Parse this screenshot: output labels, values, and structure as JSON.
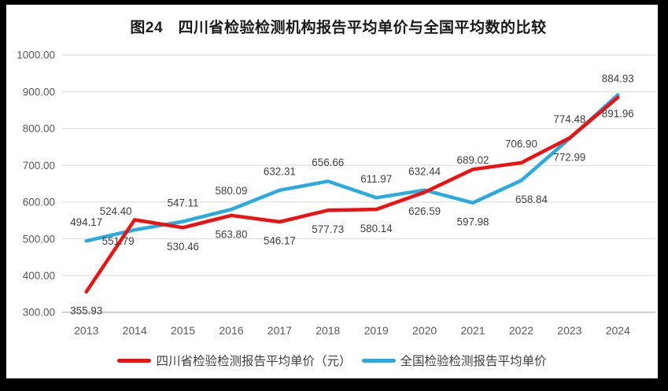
{
  "chart_data": {
    "type": "line",
    "title": "图24　四川省检验检测机构报告平均单价与全国平均数的比较",
    "categories": [
      "2013",
      "2014",
      "2015",
      "2016",
      "2017",
      "2018",
      "2019",
      "2020",
      "2021",
      "2022",
      "2023",
      "2024"
    ],
    "series": [
      {
        "name": "四川省检验检测报告平均单价（元）",
        "color": "#ee1111",
        "values": [
          355.93,
          551.79,
          530.46,
          563.8,
          546.17,
          577.73,
          580.14,
          626.59,
          689.02,
          706.9,
          774.48,
          884.93
        ],
        "label_positions": [
          "below",
          "below",
          "below",
          "below",
          "below",
          "below",
          "below",
          "below",
          "above",
          "above",
          "above",
          "above"
        ]
      },
      {
        "name": "全国检验检测报告平均单价",
        "color": "#29abe2",
        "values": [
          494.17,
          524.4,
          547.11,
          580.09,
          632.31,
          656.66,
          611.97,
          632.44,
          597.98,
          658.84,
          772.99,
          891.96
        ],
        "label_positions": [
          "above",
          "above",
          "above",
          "above",
          "above",
          "above",
          "above",
          "above",
          "below",
          "below",
          "below",
          "below"
        ]
      }
    ],
    "y_axis": {
      "min": 300,
      "max": 1000,
      "step": 100,
      "tick_labels": [
        "300.00",
        "400.00",
        "500.00",
        "600.00",
        "700.00",
        "800.00",
        "900.00",
        "1000.00"
      ]
    },
    "x_axis": {
      "labels": [
        "2013",
        "2014",
        "2015",
        "2016",
        "2017",
        "2018",
        "2019",
        "2020",
        "2021",
        "2022",
        "2023",
        "2024"
      ]
    },
    "grid": true,
    "legend_position": "bottom",
    "value_label_decimals": 2,
    "colors": {
      "gridline": "#d9d9d9",
      "axis_line": "#bfbfbf",
      "tick_text": "#595959",
      "data_label": "#404040",
      "title_text": "#1a1a1a",
      "legend_text": "#3f3f3f",
      "frame": "#000000",
      "background": "#ffffff"
    }
  }
}
